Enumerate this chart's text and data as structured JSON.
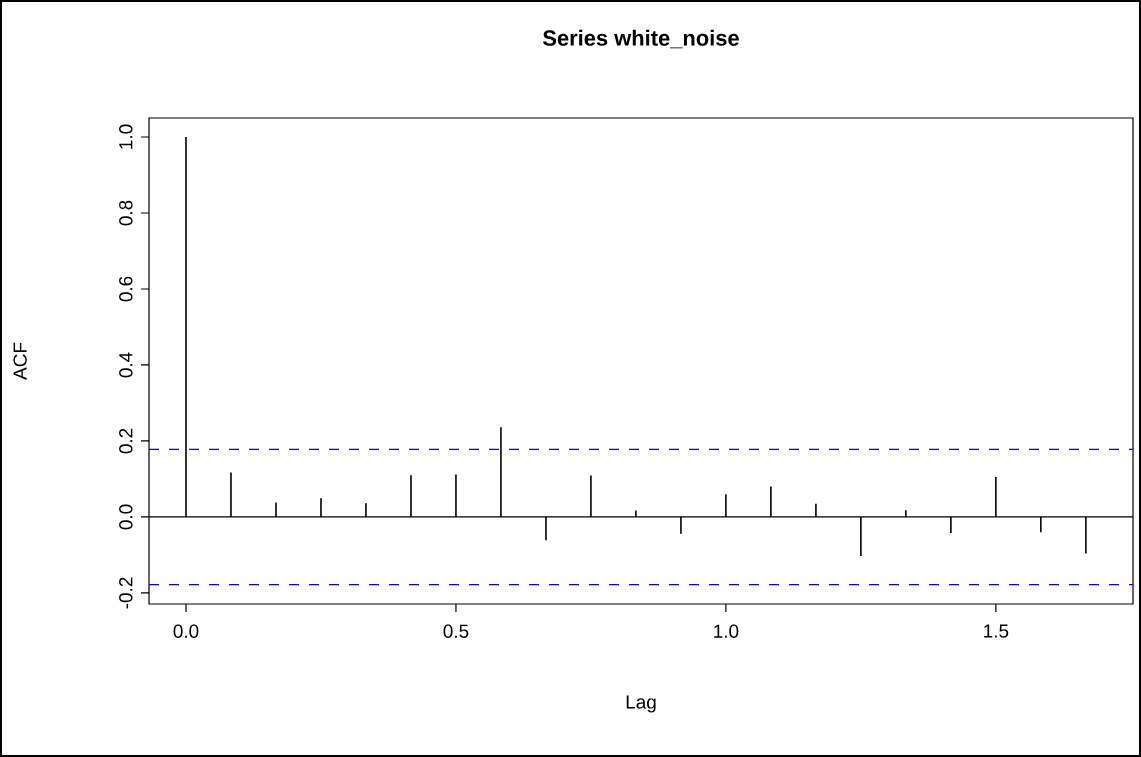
{
  "chart_data": {
    "type": "bar",
    "title": "Series  white_noise",
    "xlabel": "Lag",
    "ylabel": "ACF",
    "x": [
      0,
      0.0833,
      0.1667,
      0.25,
      0.3333,
      0.4167,
      0.5,
      0.5833,
      0.6667,
      0.75,
      0.8333,
      0.9167,
      1.0,
      1.0833,
      1.1667,
      1.25,
      1.3333,
      1.4167,
      1.5,
      1.5833,
      1.6667
    ],
    "values": [
      1.0,
      0.117,
      0.038,
      0.049,
      0.036,
      0.11,
      0.112,
      0.236,
      -0.061,
      0.109,
      0.017,
      -0.044,
      0.06,
      0.08,
      0.035,
      -0.103,
      0.018,
      -0.042,
      0.105,
      -0.04,
      -0.096
    ],
    "color": "#000000",
    "xlim": [
      -0.0685,
      1.754
    ],
    "ylim": [
      -0.229,
      1.05
    ],
    "xticks": [
      {
        "value": 0,
        "label": "0.0"
      },
      {
        "value": 0.5,
        "label": "0.5"
      },
      {
        "value": 1.0,
        "label": "1.0"
      },
      {
        "value": 1.5,
        "label": "1.5"
      }
    ],
    "yticks": [
      {
        "value": -0.2,
        "label": "-0.2"
      },
      {
        "value": 0,
        "label": "0.0"
      },
      {
        "value": 0.2,
        "label": "0.2"
      },
      {
        "value": 0.4,
        "label": "0.4"
      },
      {
        "value": 0.6,
        "label": "0.6"
      },
      {
        "value": 0.8,
        "label": "0.8"
      },
      {
        "value": 1.0,
        "label": "1.0"
      }
    ],
    "ref_lines": [
      {
        "axis": "y",
        "value": 0,
        "color": "#000000",
        "line_style": "solid"
      },
      {
        "axis": "y",
        "value": 0.178,
        "color": "#0000ff",
        "line_style": "dashed"
      },
      {
        "axis": "y",
        "value": -0.178,
        "color": "#0000ff",
        "line_style": "dashed"
      }
    ]
  }
}
